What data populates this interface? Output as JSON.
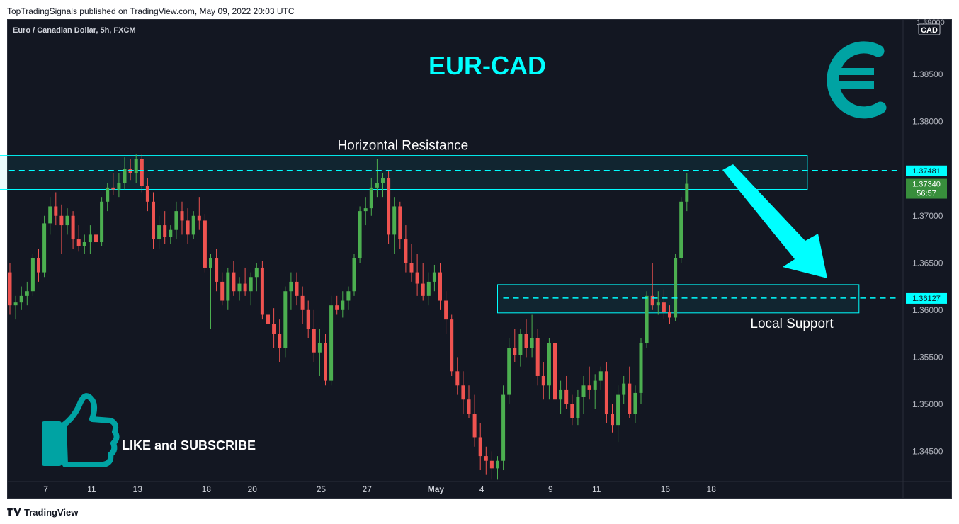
{
  "header": {
    "published": "TopTradingSignals published on TradingView.com, May 09, 2022 20:03 UTC"
  },
  "footer": {
    "brand": "TradingView"
  },
  "symbol": "Euro / Canadian Dollar, 5h, FXCM",
  "currency": "CAD",
  "colors": {
    "bg": "#131722",
    "up": "#26a69a",
    "upFill": "#4caf50",
    "down": "#ef5350",
    "accent": "#00ffff",
    "teal": "#00a3a3"
  },
  "chart_data": {
    "type": "candlestick",
    "title": "EUR-CAD",
    "ylim": [
      1.3418,
      1.3908
    ],
    "y_ticks": [
      1.385,
      1.38,
      1.375,
      1.37,
      1.365,
      1.36,
      1.355,
      1.35,
      1.345
    ],
    "y_tick_labels": [
      "1.38500",
      "1.38000",
      "",
      "1.37000",
      "1.36500",
      "1.36000",
      "1.35500",
      "1.35000",
      "1.34500"
    ],
    "top_tick_label": "1.39000",
    "x_ticks": [
      {
        "label": "7",
        "i": 6
      },
      {
        "label": "11",
        "i": 14
      },
      {
        "label": "13",
        "i": 22
      },
      {
        "label": "18",
        "i": 34
      },
      {
        "label": "20",
        "i": 42
      },
      {
        "label": "25",
        "i": 54
      },
      {
        "label": "27",
        "i": 62
      },
      {
        "label": "May",
        "i": 74
      },
      {
        "label": "4",
        "i": 82
      },
      {
        "label": "9",
        "i": 94
      },
      {
        "label": "11",
        "i": 102
      },
      {
        "label": "16",
        "i": 114
      },
      {
        "label": "18",
        "i": 122
      }
    ],
    "candles": [
      [
        1.364,
        1.365,
        1.3595,
        1.3605
      ],
      [
        1.3605,
        1.3615,
        1.359,
        1.3608
      ],
      [
        1.3608,
        1.3625,
        1.36,
        1.3615
      ],
      [
        1.3615,
        1.363,
        1.3605,
        1.362
      ],
      [
        1.362,
        1.366,
        1.3615,
        1.3655
      ],
      [
        1.3655,
        1.3665,
        1.363,
        1.364
      ],
      [
        1.364,
        1.37,
        1.3635,
        1.3692
      ],
      [
        1.3692,
        1.372,
        1.368,
        1.371
      ],
      [
        1.371,
        1.3725,
        1.369,
        1.37
      ],
      [
        1.37,
        1.3712,
        1.366,
        1.369
      ],
      [
        1.369,
        1.3708,
        1.368,
        1.37
      ],
      [
        1.37,
        1.3705,
        1.3665,
        1.3675
      ],
      [
        1.3675,
        1.369,
        1.3662,
        1.3668
      ],
      [
        1.3668,
        1.368,
        1.366,
        1.3672
      ],
      [
        1.3672,
        1.369,
        1.366,
        1.368
      ],
      [
        1.368,
        1.3688,
        1.3668,
        1.3672
      ],
      [
        1.3672,
        1.372,
        1.3668,
        1.3715
      ],
      [
        1.3715,
        1.3735,
        1.3705,
        1.373
      ],
      [
        1.373,
        1.3745,
        1.3722,
        1.3728
      ],
      [
        1.3728,
        1.3745,
        1.372,
        1.3735
      ],
      [
        1.3735,
        1.3762,
        1.3728,
        1.375
      ],
      [
        1.375,
        1.376,
        1.3738,
        1.3745
      ],
      [
        1.3745,
        1.3765,
        1.3735,
        1.376
      ],
      [
        1.376,
        1.3765,
        1.3725,
        1.3732
      ],
      [
        1.3732,
        1.374,
        1.3705,
        1.3715
      ],
      [
        1.3715,
        1.3725,
        1.3665,
        1.3675
      ],
      [
        1.3675,
        1.37,
        1.3665,
        1.369
      ],
      [
        1.369,
        1.3705,
        1.367,
        1.3678
      ],
      [
        1.3678,
        1.369,
        1.367,
        1.3685
      ],
      [
        1.3685,
        1.3715,
        1.3675,
        1.3705
      ],
      [
        1.3705,
        1.3715,
        1.368,
        1.3695
      ],
      [
        1.3695,
        1.3708,
        1.367,
        1.368
      ],
      [
        1.368,
        1.3705,
        1.3675,
        1.37
      ],
      [
        1.37,
        1.372,
        1.3685,
        1.3695
      ],
      [
        1.3695,
        1.3702,
        1.364,
        1.3645
      ],
      [
        1.3645,
        1.366,
        1.358,
        1.3655
      ],
      [
        1.3655,
        1.3665,
        1.362,
        1.363
      ],
      [
        1.363,
        1.364,
        1.3605,
        1.361
      ],
      [
        1.361,
        1.3645,
        1.36,
        1.364
      ],
      [
        1.364,
        1.3652,
        1.3615,
        1.362
      ],
      [
        1.362,
        1.3635,
        1.361,
        1.3628
      ],
      [
        1.3628,
        1.3645,
        1.3615,
        1.362
      ],
      [
        1.362,
        1.364,
        1.3605,
        1.3635
      ],
      [
        1.3635,
        1.365,
        1.362,
        1.3645
      ],
      [
        1.3645,
        1.3652,
        1.359,
        1.3595
      ],
      [
        1.3595,
        1.3605,
        1.3575,
        1.3585
      ],
      [
        1.3585,
        1.3602,
        1.356,
        1.3575
      ],
      [
        1.3575,
        1.359,
        1.3545,
        1.356
      ],
      [
        1.356,
        1.3625,
        1.355,
        1.362
      ],
      [
        1.362,
        1.364,
        1.36,
        1.363
      ],
      [
        1.363,
        1.364,
        1.3605,
        1.3615
      ],
      [
        1.3615,
        1.3625,
        1.3585,
        1.36
      ],
      [
        1.36,
        1.361,
        1.357,
        1.358
      ],
      [
        1.358,
        1.36,
        1.3545,
        1.3555
      ],
      [
        1.3555,
        1.358,
        1.353,
        1.3565
      ],
      [
        1.3565,
        1.3575,
        1.352,
        1.3525
      ],
      [
        1.3525,
        1.3615,
        1.352,
        1.3605
      ],
      [
        1.3605,
        1.3615,
        1.3595,
        1.36
      ],
      [
        1.36,
        1.362,
        1.3592,
        1.361
      ],
      [
        1.361,
        1.3625,
        1.36,
        1.362
      ],
      [
        1.362,
        1.366,
        1.3615,
        1.3655
      ],
      [
        1.3655,
        1.371,
        1.365,
        1.3705
      ],
      [
        1.3705,
        1.372,
        1.369,
        1.3708
      ],
      [
        1.3708,
        1.374,
        1.37,
        1.373
      ],
      [
        1.373,
        1.376,
        1.372,
        1.3735
      ],
      [
        1.3735,
        1.3745,
        1.372,
        1.374
      ],
      [
        1.374,
        1.3748,
        1.367,
        1.368
      ],
      [
        1.368,
        1.372,
        1.366,
        1.371
      ],
      [
        1.371,
        1.3715,
        1.3665,
        1.3675
      ],
      [
        1.3675,
        1.369,
        1.364,
        1.365
      ],
      [
        1.365,
        1.367,
        1.363,
        1.364
      ],
      [
        1.364,
        1.366,
        1.3615,
        1.3628
      ],
      [
        1.3628,
        1.365,
        1.361,
        1.3615
      ],
      [
        1.3615,
        1.364,
        1.3605,
        1.363
      ],
      [
        1.363,
        1.3648,
        1.362,
        1.364
      ],
      [
        1.364,
        1.365,
        1.36,
        1.361
      ],
      [
        1.361,
        1.362,
        1.3575,
        1.359
      ],
      [
        1.359,
        1.3595,
        1.353,
        1.3535
      ],
      [
        1.3535,
        1.355,
        1.351,
        1.352
      ],
      [
        1.352,
        1.3535,
        1.349,
        1.3505
      ],
      [
        1.3505,
        1.352,
        1.3485,
        1.349
      ],
      [
        1.349,
        1.351,
        1.3455,
        1.3465
      ],
      [
        1.3465,
        1.348,
        1.343,
        1.3445
      ],
      [
        1.3445,
        1.3455,
        1.3425,
        1.344
      ],
      [
        1.344,
        1.345,
        1.342,
        1.3432
      ],
      [
        1.3432,
        1.3445,
        1.342,
        1.344
      ],
      [
        1.344,
        1.352,
        1.343,
        1.351
      ],
      [
        1.351,
        1.357,
        1.35,
        1.356
      ],
      [
        1.356,
        1.358,
        1.3545,
        1.3552
      ],
      [
        1.3552,
        1.358,
        1.354,
        1.3575
      ],
      [
        1.3575,
        1.359,
        1.355,
        1.356
      ],
      [
        1.356,
        1.3595,
        1.355,
        1.357
      ],
      [
        1.357,
        1.358,
        1.352,
        1.353
      ],
      [
        1.353,
        1.3545,
        1.3505,
        1.352
      ],
      [
        1.352,
        1.357,
        1.3505,
        1.3565
      ],
      [
        1.3565,
        1.358,
        1.3495,
        1.3505
      ],
      [
        1.3505,
        1.3525,
        1.349,
        1.3515
      ],
      [
        1.3515,
        1.353,
        1.3495,
        1.35
      ],
      [
        1.35,
        1.351,
        1.3478,
        1.3485
      ],
      [
        1.3485,
        1.3515,
        1.3478,
        1.3508
      ],
      [
        1.3508,
        1.353,
        1.349,
        1.352
      ],
      [
        1.352,
        1.354,
        1.3505,
        1.3515
      ],
      [
        1.3515,
        1.3532,
        1.3495,
        1.3525
      ],
      [
        1.3525,
        1.354,
        1.3515,
        1.3535
      ],
      [
        1.3535,
        1.3545,
        1.348,
        1.349
      ],
      [
        1.349,
        1.35,
        1.347,
        1.3478
      ],
      [
        1.3478,
        1.352,
        1.346,
        1.351
      ],
      [
        1.351,
        1.353,
        1.35,
        1.3522
      ],
      [
        1.3522,
        1.354,
        1.3485,
        1.349
      ],
      [
        1.349,
        1.352,
        1.348,
        1.3512
      ],
      [
        1.3512,
        1.357,
        1.35,
        1.3565
      ],
      [
        1.3565,
        1.362,
        1.356,
        1.3615
      ],
      [
        1.3615,
        1.365,
        1.36,
        1.3605
      ],
      [
        1.3605,
        1.362,
        1.3595,
        1.3608
      ],
      [
        1.3608,
        1.3622,
        1.359,
        1.3598
      ],
      [
        1.3598,
        1.3605,
        1.3585,
        1.3592
      ],
      [
        1.3592,
        1.366,
        1.3588,
        1.3655
      ],
      [
        1.3655,
        1.372,
        1.365,
        1.3715
      ],
      [
        1.3715,
        1.3745,
        1.3705,
        1.3734
      ]
    ],
    "resistance": {
      "label": "Horizontal Resistance",
      "level": 1.37481,
      "level_label": "1.37481",
      "zone": [
        1.3728,
        1.3764
      ],
      "i_range": [
        -2,
        139
      ]
    },
    "support": {
      "label": "Local Support",
      "level": 1.36127,
      "level_label": "1.36127",
      "zone": [
        1.3597,
        1.3627
      ],
      "i_range": [
        85,
        148
      ]
    },
    "last_price": {
      "value": 1.3734,
      "label": "1.37340",
      "countdown": "56:57"
    }
  },
  "cta": {
    "text": "LIKE and SUBSCRIBE"
  },
  "icons": {
    "logo": "euro-icon",
    "like": "thumbs-up-icon",
    "arrow": "down-arrow-icon"
  }
}
